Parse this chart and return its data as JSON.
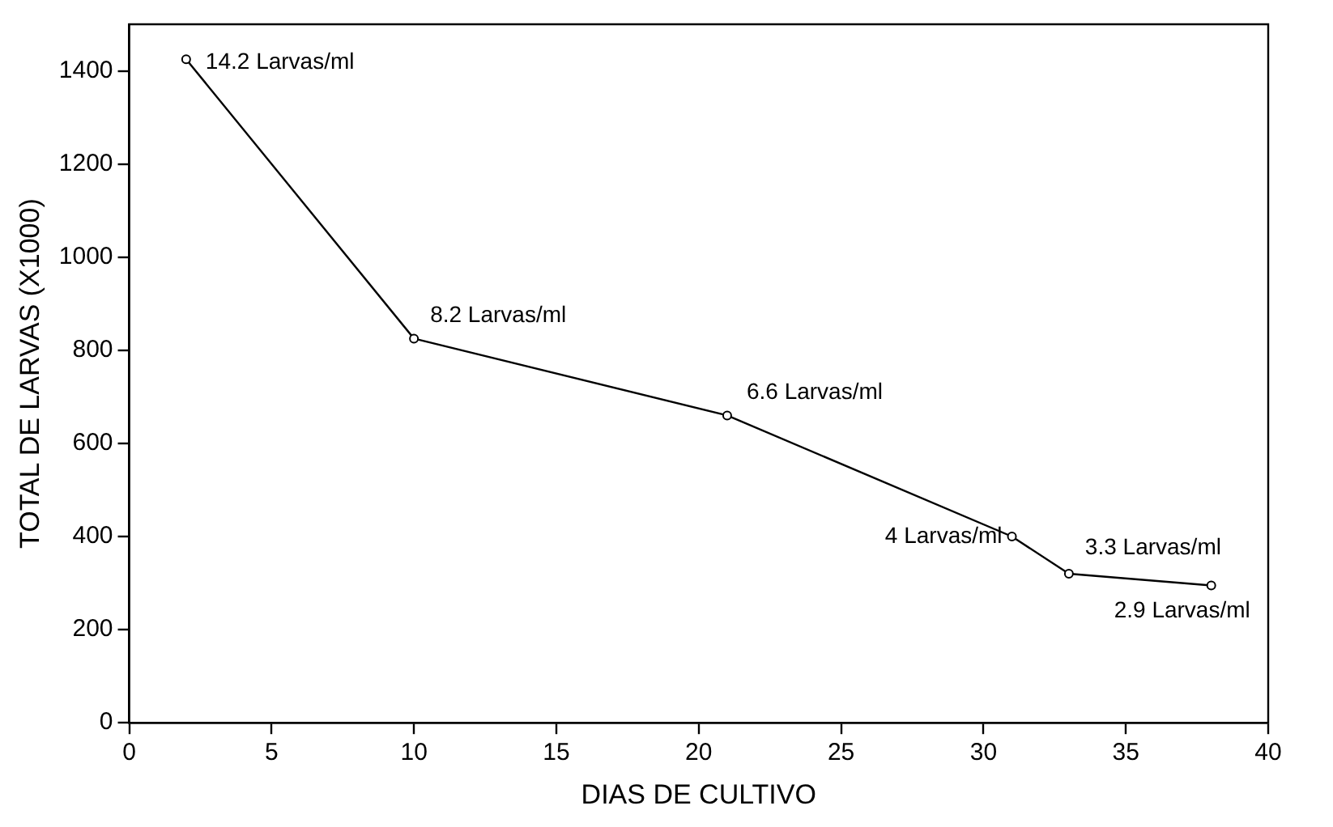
{
  "chart_data": {
    "type": "line",
    "xlabel": "DIAS DE CULTIVO",
    "ylabel": "TOTAL DE LARVAS (X1000)",
    "x": [
      2,
      10,
      21,
      31,
      33,
      38
    ],
    "series": [
      {
        "color": "#000000",
        "values": [
          1425,
          825,
          660,
          400,
          320,
          295
        ]
      }
    ],
    "xlim": [
      0,
      40
    ],
    "xticks": [
      0,
      5,
      10,
      15,
      20,
      25,
      30,
      35,
      40
    ],
    "ylim": [
      0,
      1500
    ],
    "yticks": [
      0,
      200,
      400,
      600,
      800,
      1000,
      1200,
      1400
    ],
    "grid": false,
    "legend": false,
    "marker": "circle",
    "line_style": "solid",
    "annotations": [
      {
        "text": "14.2 Larvas/ml",
        "x": 2,
        "y": 1425
      },
      {
        "text": "8.2 Larvas/ml",
        "x": 10,
        "y": 825
      },
      {
        "text": "6.6 Larvas/ml",
        "x": 21,
        "y": 660
      },
      {
        "text": "4 Larvas/ml",
        "x": 31,
        "y": 400
      },
      {
        "text": "3.3 Larvas/ml",
        "x": 33,
        "y": 320
      },
      {
        "text": "2.9 Larvas/ml",
        "x": 38,
        "y": 295
      }
    ]
  }
}
